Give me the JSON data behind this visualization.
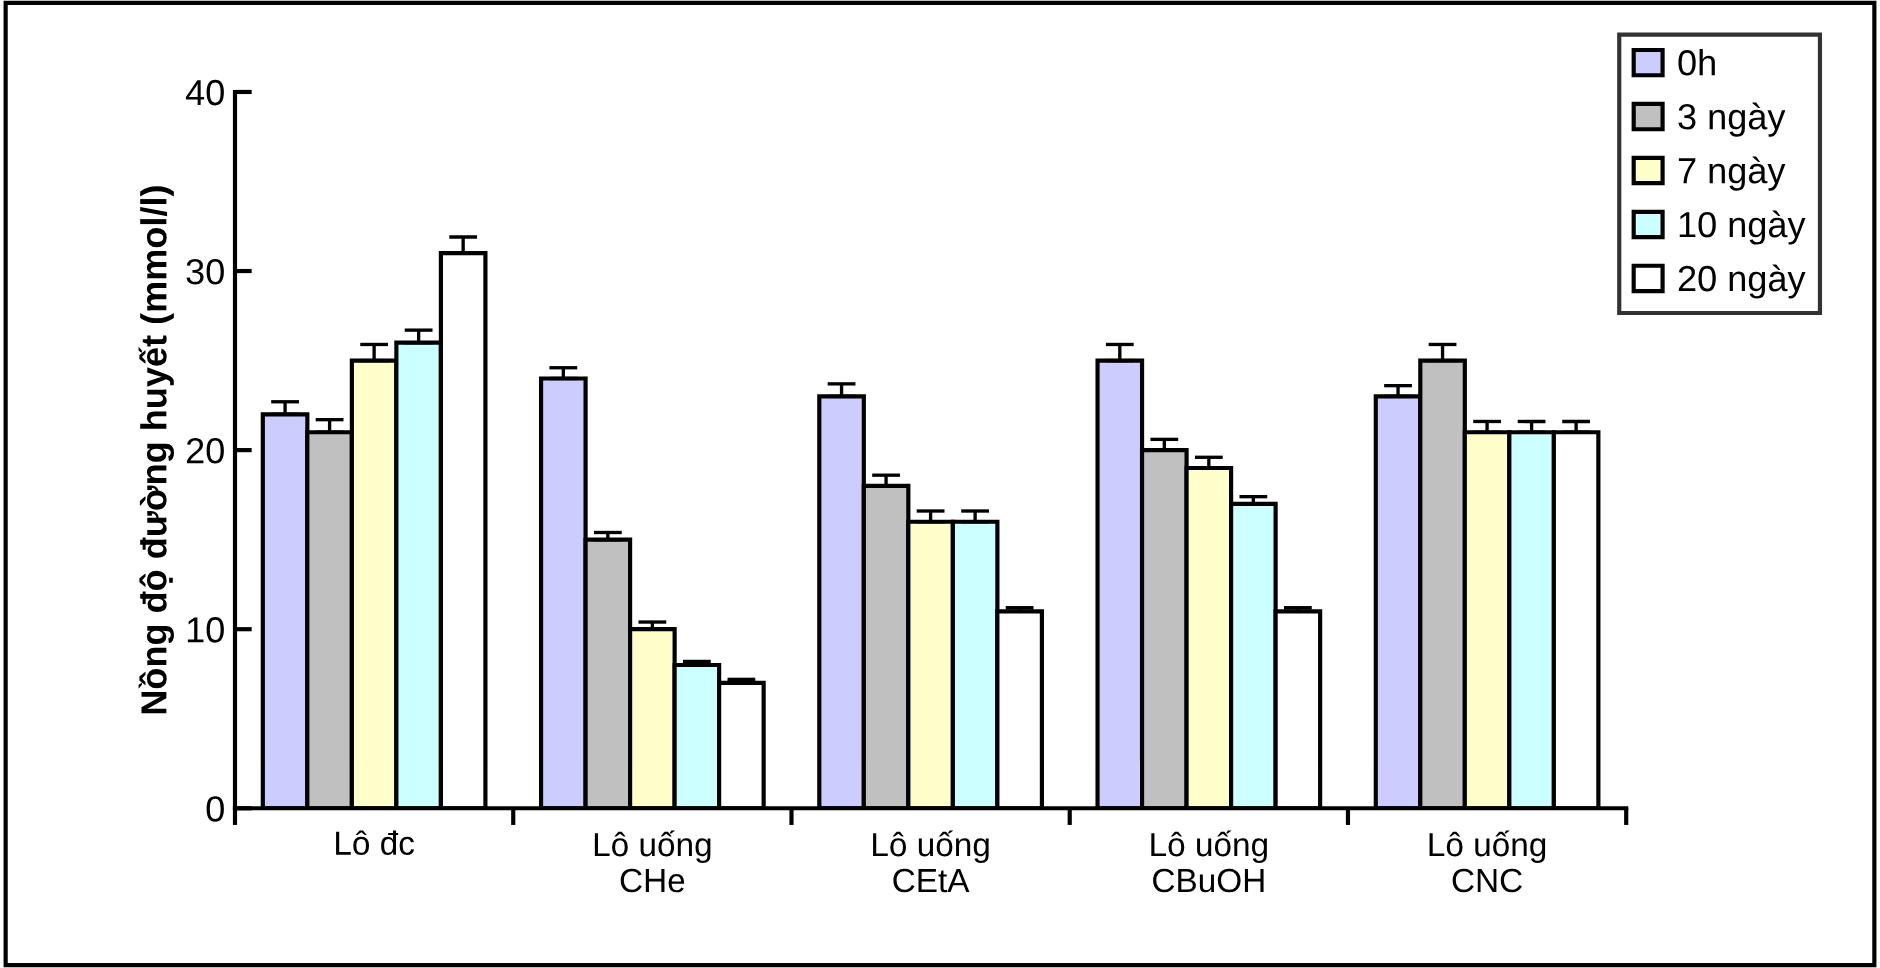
{
  "chart_data": {
    "type": "bar",
    "ylabel": "Nồng độ đường huyết (mmol/l)",
    "categories": [
      "Lô đc",
      "Lô uống\nCHe",
      "Lô uống\nCEtA",
      "Lô uống\nCBuOH",
      "Lô uống\nCNC"
    ],
    "series": [
      {
        "name": "0h",
        "color": "#ccccff",
        "values": [
          22,
          24,
          23,
          25,
          23
        ],
        "errors": [
          0.7,
          0.6,
          0.7,
          0.9,
          0.6
        ]
      },
      {
        "name": "3 ngày",
        "color": "#c0c0c0",
        "values": [
          21,
          15,
          18,
          20,
          25
        ],
        "errors": [
          0.7,
          0.4,
          0.6,
          0.6,
          0.9
        ]
      },
      {
        "name": "7 ngày",
        "color": "#ffffcc",
        "values": [
          25,
          10,
          16,
          19,
          21
        ],
        "errors": [
          0.9,
          0.4,
          0.6,
          0.6,
          0.6
        ]
      },
      {
        "name": "10 ngày",
        "color": "#ccffff",
        "values": [
          26,
          8,
          16,
          17,
          21
        ],
        "errors": [
          0.7,
          0.2,
          0.6,
          0.4,
          0.6
        ]
      },
      {
        "name": "20 ngày",
        "color": "#ffffff",
        "values": [
          31,
          7,
          11,
          11,
          21
        ],
        "errors": [
          0.9,
          0.2,
          0.2,
          0.2,
          0.6
        ]
      }
    ],
    "ylim": [
      0,
      40
    ],
    "yticks": [
      0,
      10,
      20,
      30,
      40
    ],
    "grid": false,
    "legend": "top right"
  }
}
